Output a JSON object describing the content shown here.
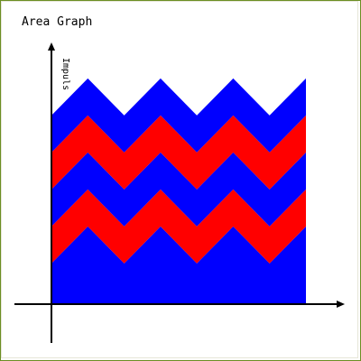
{
  "chart_data": {
    "type": "area",
    "title": "Area Graph",
    "xlabel": "",
    "ylabel": "Impuls",
    "x": [
      0,
      1,
      2,
      3,
      4,
      5,
      6,
      7
    ],
    "xlim": [
      0,
      7
    ],
    "ylim": [
      0,
      6
    ],
    "grid": false,
    "series": [
      {
        "values": [
          1.1,
          2.1,
          1.1,
          2.1,
          1.1,
          2.1,
          1.1,
          2.1
        ],
        "color": "#0000ff"
      },
      {
        "values": [
          2.1,
          3.1,
          2.1,
          3.1,
          2.1,
          3.1,
          2.1,
          3.1
        ],
        "color": "#ff0000"
      },
      {
        "values": [
          3.1,
          4.1,
          3.1,
          4.1,
          3.1,
          4.1,
          3.1,
          4.1
        ],
        "color": "#0000ff"
      },
      {
        "values": [
          4.1,
          5.1,
          4.1,
          5.1,
          4.1,
          5.1,
          4.1,
          5.1
        ],
        "color": "#ff0000"
      },
      {
        "values": [
          5.1,
          6.1,
          5.1,
          6.1,
          5.1,
          6.1,
          5.1,
          6.1
        ],
        "color": "#0000ff"
      }
    ]
  },
  "colors": {
    "background": "#ffffff",
    "outer_border": "#6b8e23",
    "inner_border": "#e6e6d8",
    "axis": "#000000"
  }
}
